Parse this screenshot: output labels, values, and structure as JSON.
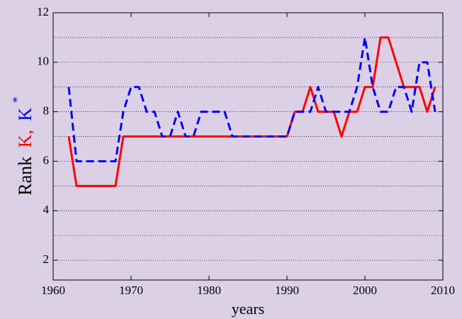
{
  "chart_data": {
    "type": "line",
    "xlabel": "years",
    "ylabel_parts": [
      {
        "text": "Rank",
        "color": "#000000"
      },
      {
        "text": "K,",
        "color": "#ff0000"
      },
      {
        "text": "K",
        "color": "#0000ff"
      },
      {
        "text": "*",
        "color": "#0000ff"
      }
    ],
    "x": [
      1962,
      1963,
      1964,
      1965,
      1966,
      1967,
      1968,
      1969,
      1970,
      1971,
      1972,
      1973,
      1974,
      1975,
      1976,
      1977,
      1978,
      1979,
      1980,
      1981,
      1982,
      1983,
      1984,
      1985,
      1986,
      1987,
      1988,
      1989,
      1990,
      1991,
      1992,
      1993,
      1994,
      1995,
      1996,
      1997,
      1998,
      1999,
      2000,
      2001,
      2002,
      2003,
      2004,
      2005,
      2006,
      2007,
      2008,
      2009
    ],
    "series": [
      {
        "name": "K",
        "color": "#ff0000",
        "dash": false,
        "values": [
          7,
          5,
          5,
          5,
          5,
          5,
          5,
          7,
          7,
          7,
          7,
          7,
          7,
          7,
          7,
          7,
          7,
          7,
          7,
          7,
          7,
          7,
          7,
          7,
          7,
          7,
          7,
          7,
          7,
          8,
          8,
          9,
          8,
          8,
          8,
          7,
          8,
          8,
          9,
          9,
          11,
          11,
          10,
          9,
          9,
          9,
          8,
          9
        ]
      },
      {
        "name": "K*",
        "color": "#0000ff",
        "dash": true,
        "values": [
          9,
          6,
          6,
          6,
          6,
          6,
          6,
          8,
          9,
          9,
          8,
          8,
          7,
          7,
          8,
          7,
          7,
          8,
          8,
          8,
          8,
          7,
          7,
          7,
          7,
          7,
          7,
          7,
          7,
          8,
          8,
          8,
          9,
          8,
          8,
          8,
          8,
          9,
          11,
          9,
          8,
          8,
          9,
          9,
          8,
          10,
          10,
          8
        ]
      }
    ],
    "xlim": [
      1960,
      2010
    ],
    "xticks": [
      1960,
      1970,
      1980,
      1990,
      2000,
      2010
    ],
    "ylim": [
      1.2,
      12
    ],
    "yticks": [
      2,
      4,
      6,
      8,
      10,
      12
    ],
    "ygrid": [
      2,
      3,
      4,
      5,
      6,
      7,
      8,
      9,
      10,
      11
    ],
    "grid": true
  }
}
